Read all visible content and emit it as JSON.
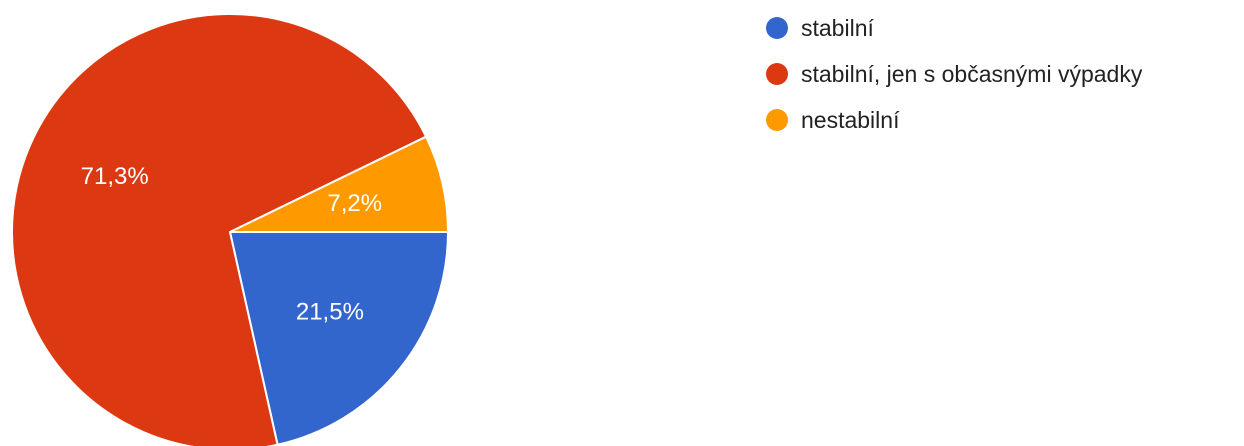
{
  "chart_data": {
    "type": "pie",
    "start_angle_deg": 90,
    "direction": "clockwise",
    "slices": [
      {
        "name": "stabilní",
        "value": 21.5,
        "label": "21,5%",
        "color": "#3366cc"
      },
      {
        "name": "stabilní, jen s občasnými výpadky",
        "value": 71.3,
        "label": "71,3%",
        "color": "#dc3912"
      },
      {
        "name": "nestabilní",
        "value": 7.2,
        "label": "7,2%",
        "color": "#ff9900"
      }
    ],
    "legend_position": "top-right"
  }
}
